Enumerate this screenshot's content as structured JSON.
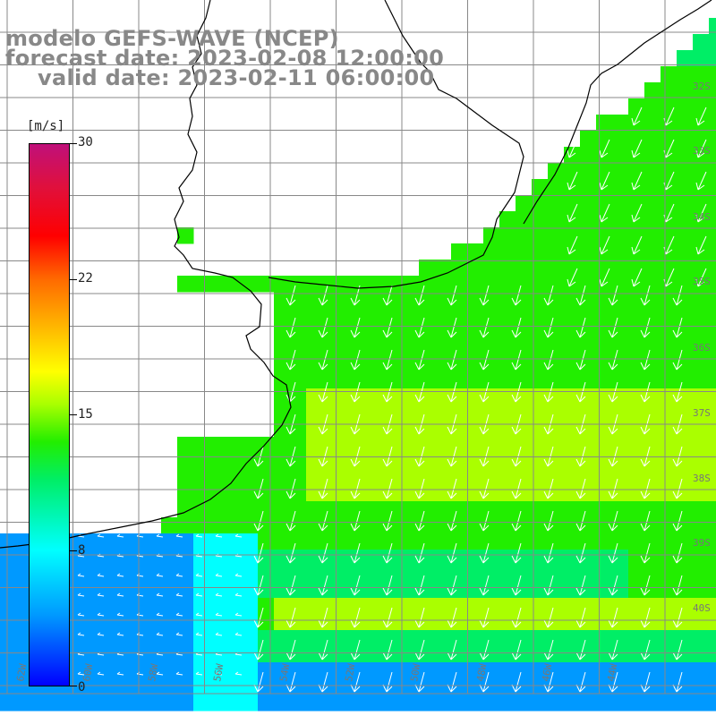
{
  "title": {
    "line1": "modelo GEFS-WAVE (NCEP)",
    "line2": "forecast date: 2023-02-08 12:00:00",
    "line3": "valid date: 2023-02-11 06:00:00"
  },
  "colorbar": {
    "unit": "[m/s]",
    "ticks": [
      {
        "label": "30",
        "value": 30
      },
      {
        "label": "22",
        "value": 22
      },
      {
        "label": "15",
        "value": 15
      },
      {
        "label": "8",
        "value": 8
      },
      {
        "label": "0",
        "value": 0
      }
    ],
    "colors": [
      "#0000ff",
      "#0099ff",
      "#00ffff",
      "#00ee66",
      "#22ee00",
      "#aaff00",
      "#ffff00",
      "#ffb000",
      "#ff6a00",
      "#ff0000",
      "#e0103c",
      "#c0107a"
    ]
  },
  "lat_labels": [
    "32S",
    "33S",
    "34S",
    "35S",
    "36S",
    "37S",
    "38S",
    "39S",
    "40S"
  ],
  "lon_labels": [
    "62W",
    "60W",
    "58W",
    "56W",
    "54W",
    "52W",
    "50W",
    "48W",
    "46W",
    "44W"
  ],
  "map": {
    "land_color": "#ffffff",
    "grid_color": "#888888",
    "coast_color": "#000000",
    "arrow_color": "#ffffff"
  }
}
